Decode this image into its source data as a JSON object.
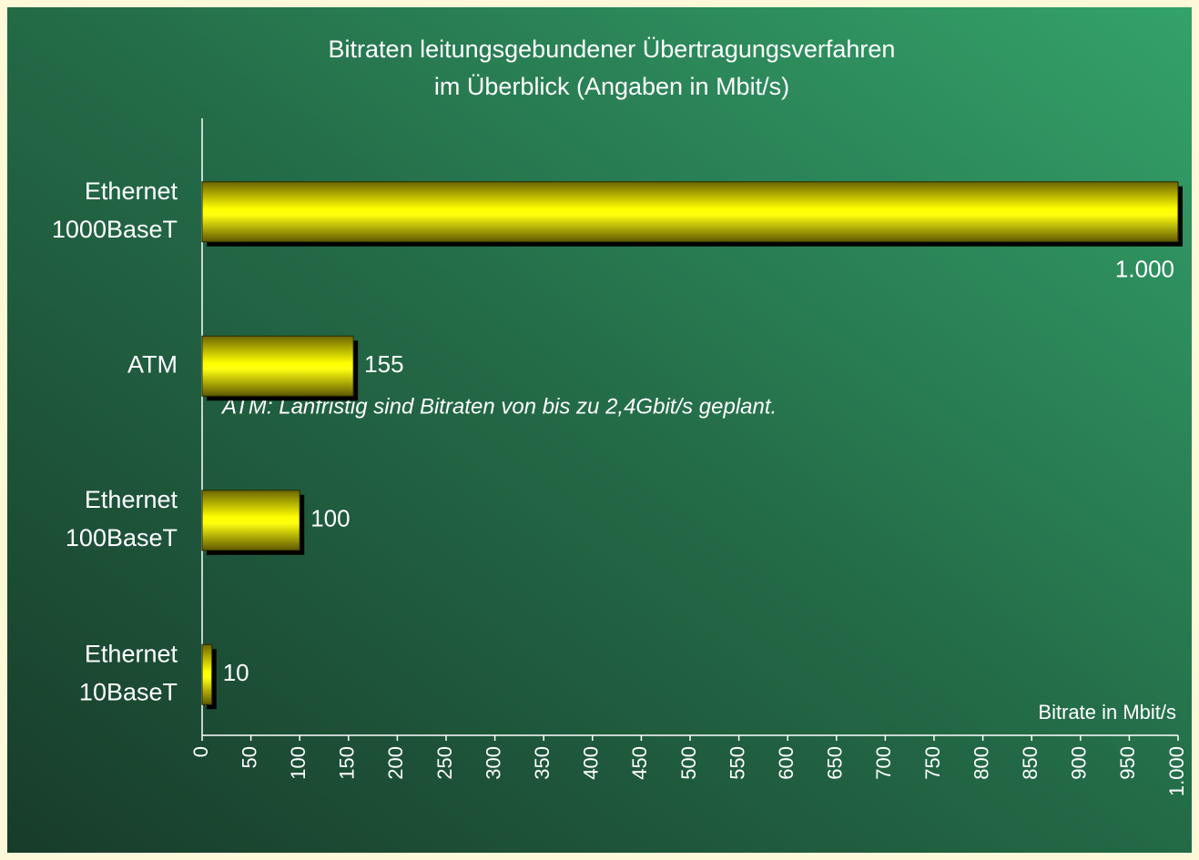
{
  "chart_data": {
    "type": "hbar",
    "title": [
      "Bitraten leitungsgebundener Übertragungsverfahren",
      "im Überblick (Angaben in Mbit/s)"
    ],
    "categories": [
      [
        "Ethernet",
        "1000BaseT"
      ],
      [
        "ATM"
      ],
      [
        "Ethernet",
        "100BaseT"
      ],
      [
        "Ethernet",
        "10BaseT"
      ]
    ],
    "values": [
      1000,
      155,
      100,
      10
    ],
    "value_labels": [
      "1.000",
      "155",
      "100",
      "10"
    ],
    "color": "#ffff00",
    "xlim": [
      0,
      1000
    ],
    "xticks": [
      0,
      50,
      100,
      150,
      200,
      250,
      300,
      350,
      400,
      450,
      500,
      550,
      600,
      650,
      700,
      750,
      800,
      850,
      900,
      950,
      {
        "value": 1000,
        "label": "1.000"
      }
    ],
    "xlabel": "Bitrate in Mbit/s",
    "annotation": "ATM: Lanfristig sind Bitraten von bis zu 2,4Gbit/s geplant."
  }
}
